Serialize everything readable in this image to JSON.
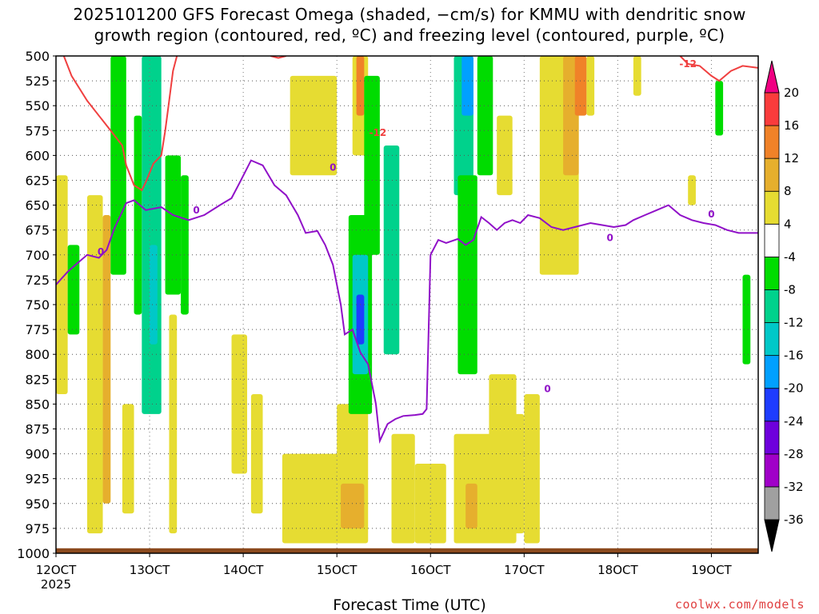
{
  "title_line1": "2025101200 GFS Forecast Omega (shaded, −cm/s) for KMMU with dendritic snow",
  "title_line2": "growth region (contoured, red, ºC) and freezing level (contoured, purple, ºC)",
  "credit": "coolwx.com/models",
  "chart_data": {
    "type": "heatmap",
    "xlabel": "Forecast Time (UTC)",
    "x_year_label": "2025",
    "x_ticks": [
      {
        "label": "12OCT",
        "hour": 0
      },
      {
        "label": "13OCT",
        "hour": 24
      },
      {
        "label": "14OCT",
        "hour": 48
      },
      {
        "label": "15OCT",
        "hour": 72
      },
      {
        "label": "16OCT",
        "hour": 96
      },
      {
        "label": "17OCT",
        "hour": 120
      },
      {
        "label": "18OCT",
        "hour": 144
      },
      {
        "label": "19OCT",
        "hour": 168
      }
    ],
    "x_range_hours": [
      0,
      180
    ],
    "y_range_hPa": [
      500,
      1000
    ],
    "y_ticks": [
      500,
      525,
      550,
      575,
      600,
      625,
      650,
      675,
      700,
      725,
      750,
      775,
      800,
      825,
      850,
      875,
      900,
      925,
      950,
      975,
      1000
    ],
    "grid": true,
    "colorbar": {
      "levels": [
        -36,
        -32,
        -28,
        -24,
        -20,
        -16,
        -12,
        -8,
        -4,
        4,
        8,
        12,
        16,
        20
      ],
      "colors": [
        "#000000",
        "#a0a0a0",
        "#a000c8",
        "#6e00dc",
        "#1e3cff",
        "#00a0ff",
        "#00c8c8",
        "#00d28c",
        "#00dc00",
        "#ffffff",
        "#e6dc32",
        "#e6af2d",
        "#f08228",
        "#fa3c3c",
        "#f00082"
      ]
    },
    "shaded_regions": [
      {
        "t0": 0,
        "t1": 3,
        "p0": 620,
        "p1": 840,
        "omega": 5
      },
      {
        "t0": 3,
        "t1": 6,
        "p0": 690,
        "p1": 780,
        "omega": -6
      },
      {
        "t0": 8,
        "t1": 12,
        "p0": 640,
        "p1": 980,
        "omega": 6
      },
      {
        "t0": 12,
        "t1": 14,
        "p0": 660,
        "p1": 950,
        "omega": 10
      },
      {
        "t0": 14,
        "t1": 18,
        "p0": 500,
        "p1": 720,
        "omega": -8
      },
      {
        "t0": 17,
        "t1": 20,
        "p0": 850,
        "p1": 960,
        "omega": 5
      },
      {
        "t0": 20,
        "t1": 22,
        "p0": 560,
        "p1": 760,
        "omega": -6
      },
      {
        "t0": 22,
        "t1": 27,
        "p0": 500,
        "p1": 860,
        "omega": -10
      },
      {
        "t0": 24,
        "t1": 26,
        "p0": 690,
        "p1": 790,
        "omega": -16
      },
      {
        "t0": 28,
        "t1": 32,
        "p0": 600,
        "p1": 740,
        "omega": -8
      },
      {
        "t0": 29,
        "t1": 31,
        "p0": 760,
        "p1": 980,
        "omega": 7
      },
      {
        "t0": 32,
        "t1": 34,
        "p0": 620,
        "p1": 760,
        "omega": -8
      },
      {
        "t0": 45,
        "t1": 49,
        "p0": 780,
        "p1": 920,
        "omega": 6
      },
      {
        "t0": 50,
        "t1": 53,
        "p0": 840,
        "p1": 960,
        "omega": 6
      },
      {
        "t0": 58,
        "t1": 75,
        "p0": 900,
        "p1": 990,
        "omega": 5
      },
      {
        "t0": 60,
        "t1": 72,
        "p0": 520,
        "p1": 620,
        "omega": 5
      },
      {
        "t0": 72,
        "t1": 80,
        "p0": 850,
        "p1": 990,
        "omega": 6
      },
      {
        "t0": 73,
        "t1": 79,
        "p0": 930,
        "p1": 975,
        "omega": 9
      },
      {
        "t0": 75,
        "t1": 81,
        "p0": 660,
        "p1": 860,
        "omega": -8
      },
      {
        "t0": 76,
        "t1": 80,
        "p0": 700,
        "p1": 820,
        "omega": -13
      },
      {
        "t0": 77,
        "t1": 79,
        "p0": 740,
        "p1": 790,
        "omega": -22
      },
      {
        "t0": 76,
        "t1": 80,
        "p0": 500,
        "p1": 600,
        "omega": 6
      },
      {
        "t0": 77,
        "t1": 79,
        "p0": 500,
        "p1": 560,
        "omega": 15
      },
      {
        "t0": 79,
        "t1": 83,
        "p0": 520,
        "p1": 700,
        "omega": -8
      },
      {
        "t0": 84,
        "t1": 88,
        "p0": 590,
        "p1": 800,
        "omega": -9
      },
      {
        "t0": 86,
        "t1": 92,
        "p0": 880,
        "p1": 990,
        "omega": 6
      },
      {
        "t0": 92,
        "t1": 100,
        "p0": 910,
        "p1": 990,
        "omega": 5
      },
      {
        "t0": 102,
        "t1": 107,
        "p0": 500,
        "p1": 640,
        "omega": -10
      },
      {
        "t0": 103,
        "t1": 108,
        "p0": 620,
        "p1": 820,
        "omega": -8
      },
      {
        "t0": 104,
        "t1": 107,
        "p0": 500,
        "p1": 560,
        "omega": -18
      },
      {
        "t0": 102,
        "t1": 112,
        "p0": 880,
        "p1": 990,
        "omega": 6
      },
      {
        "t0": 105,
        "t1": 108,
        "p0": 930,
        "p1": 975,
        "omega": 9
      },
      {
        "t0": 108,
        "t1": 112,
        "p0": 500,
        "p1": 620,
        "omega": -8
      },
      {
        "t0": 111,
        "t1": 118,
        "p0": 820,
        "p1": 990,
        "omega": 5
      },
      {
        "t0": 114,
        "t1": 120,
        "p0": 860,
        "p1": 980,
        "omega": 7
      },
      {
        "t0": 113,
        "t1": 117,
        "p0": 560,
        "p1": 640,
        "omega": 5
      },
      {
        "t0": 120,
        "t1": 124,
        "p0": 840,
        "p1": 990,
        "omega": 5
      },
      {
        "t0": 124,
        "t1": 134,
        "p0": 500,
        "p1": 720,
        "omega": 5
      },
      {
        "t0": 130,
        "t1": 134,
        "p0": 500,
        "p1": 620,
        "omega": 8
      },
      {
        "t0": 133,
        "t1": 136,
        "p0": 500,
        "p1": 560,
        "omega": 15
      },
      {
        "t0": 136,
        "t1": 138,
        "p0": 500,
        "p1": 560,
        "omega": 5
      },
      {
        "t0": 148,
        "t1": 150,
        "p0": 500,
        "p1": 540,
        "omega": 5
      },
      {
        "t0": 162,
        "t1": 164,
        "p0": 620,
        "p1": 650,
        "omega": 5
      },
      {
        "t0": 169,
        "t1": 171,
        "p0": 525,
        "p1": 580,
        "omega": -7
      },
      {
        "t0": 176,
        "t1": 178,
        "p0": 720,
        "p1": 810,
        "omega": -6
      }
    ],
    "dendritic_minus12_contour": {
      "label": "-12",
      "points": [
        [
          2,
          500
        ],
        [
          4,
          520
        ],
        [
          8,
          545
        ],
        [
          14,
          575
        ],
        [
          17,
          590
        ],
        [
          18,
          610
        ],
        [
          20,
          630
        ],
        [
          22,
          635
        ],
        [
          23,
          627
        ],
        [
          25,
          608
        ],
        [
          27,
          600
        ],
        [
          28,
          575
        ],
        [
          29,
          545
        ],
        [
          30,
          515
        ],
        [
          31,
          500
        ]
      ]
    },
    "dendritic_minus12_contour_late": {
      "label": "-12",
      "points": [
        [
          160,
          500
        ],
        [
          162,
          508
        ],
        [
          165,
          510
        ],
        [
          168,
          520
        ],
        [
          170,
          525
        ],
        [
          173,
          515
        ],
        [
          176,
          510
        ],
        [
          180,
          512
        ]
      ]
    },
    "dendritic_minus12_contour_top": {
      "label": "-12",
      "points": [
        [
          55,
          500
        ],
        [
          57,
          502
        ],
        [
          59,
          500
        ]
      ]
    },
    "freezing_level_contour": {
      "label": "0",
      "points": [
        [
          0,
          730
        ],
        [
          3,
          717
        ],
        [
          5,
          710
        ],
        [
          8,
          700
        ],
        [
          11,
          703
        ],
        [
          13,
          695
        ],
        [
          15,
          673
        ],
        [
          18,
          648
        ],
        [
          20,
          645
        ],
        [
          23,
          655
        ],
        [
          27,
          652
        ],
        [
          30,
          660
        ],
        [
          34,
          665
        ],
        [
          38,
          660
        ],
        [
          42,
          650
        ],
        [
          45,
          643
        ],
        [
          47,
          628
        ],
        [
          50,
          605
        ],
        [
          53,
          610
        ],
        [
          56,
          630
        ],
        [
          59,
          640
        ],
        [
          62,
          660
        ],
        [
          64,
          678
        ],
        [
          67,
          676
        ],
        [
          69,
          690
        ],
        [
          71,
          710
        ],
        [
          73,
          750
        ],
        [
          74,
          780
        ],
        [
          76,
          775
        ],
        [
          78,
          798
        ],
        [
          80,
          810
        ],
        [
          81,
          830
        ],
        [
          82,
          850
        ],
        [
          83,
          887
        ],
        [
          85,
          870
        ],
        [
          87,
          865
        ],
        [
          89,
          862
        ],
        [
          92,
          861
        ],
        [
          94,
          860
        ],
        [
          95,
          855
        ],
        [
          96,
          700
        ],
        [
          98,
          685
        ],
        [
          100,
          688
        ],
        [
          103,
          684
        ],
        [
          105,
          690
        ],
        [
          107,
          685
        ],
        [
          109,
          662
        ],
        [
          111,
          668
        ],
        [
          113,
          675
        ],
        [
          115,
          668
        ],
        [
          117,
          665
        ],
        [
          119,
          668
        ],
        [
          121,
          660
        ],
        [
          124,
          663
        ],
        [
          127,
          672
        ],
        [
          130,
          675
        ],
        [
          133,
          672
        ],
        [
          137,
          668
        ],
        [
          140,
          670
        ],
        [
          143,
          672
        ],
        [
          146,
          670
        ],
        [
          148,
          665
        ],
        [
          151,
          660
        ],
        [
          154,
          655
        ],
        [
          157,
          650
        ],
        [
          160,
          660
        ],
        [
          163,
          665
        ],
        [
          166,
          668
        ],
        [
          169,
          670
        ],
        [
          172,
          675
        ],
        [
          175,
          678
        ],
        [
          180,
          678
        ]
      ]
    }
  }
}
